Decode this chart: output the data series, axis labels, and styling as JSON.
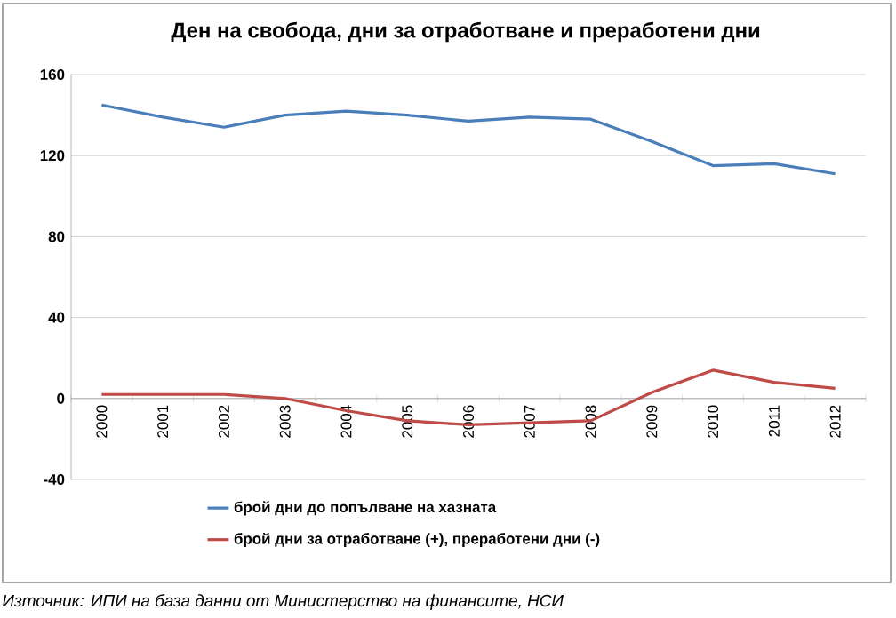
{
  "chart_data": {
    "type": "line",
    "title": "Ден на свобода, дни за отработване и преработени дни",
    "categories": [
      "2000",
      "2001",
      "2002",
      "2003",
      "2004",
      "2005",
      "2006",
      "2007",
      "2008",
      "2009",
      "2010",
      "2011",
      "2012"
    ],
    "series": [
      {
        "name": "брой дни до попълване на хазната",
        "color": "#4a7ebb",
        "values": [
          145,
          139,
          134,
          140,
          142,
          140,
          137,
          139,
          138,
          127,
          115,
          116,
          111
        ]
      },
      {
        "name": "брой дни за отработване (+), преработени дни (-)",
        "color": "#be4b48",
        "values": [
          2,
          2,
          2,
          0,
          -6,
          -11,
          -13,
          -12,
          -11,
          3,
          14,
          8,
          5
        ]
      }
    ],
    "ylim": [
      -40,
      160
    ],
    "yticks": [
      -40,
      0,
      40,
      80,
      120,
      160
    ],
    "grid": "y",
    "legend": "bottom",
    "marker": "none",
    "line_style": "solid",
    "annotations": [
      "Източник: ИПИ на база данни от Министерство на финансите, НСИ"
    ]
  }
}
